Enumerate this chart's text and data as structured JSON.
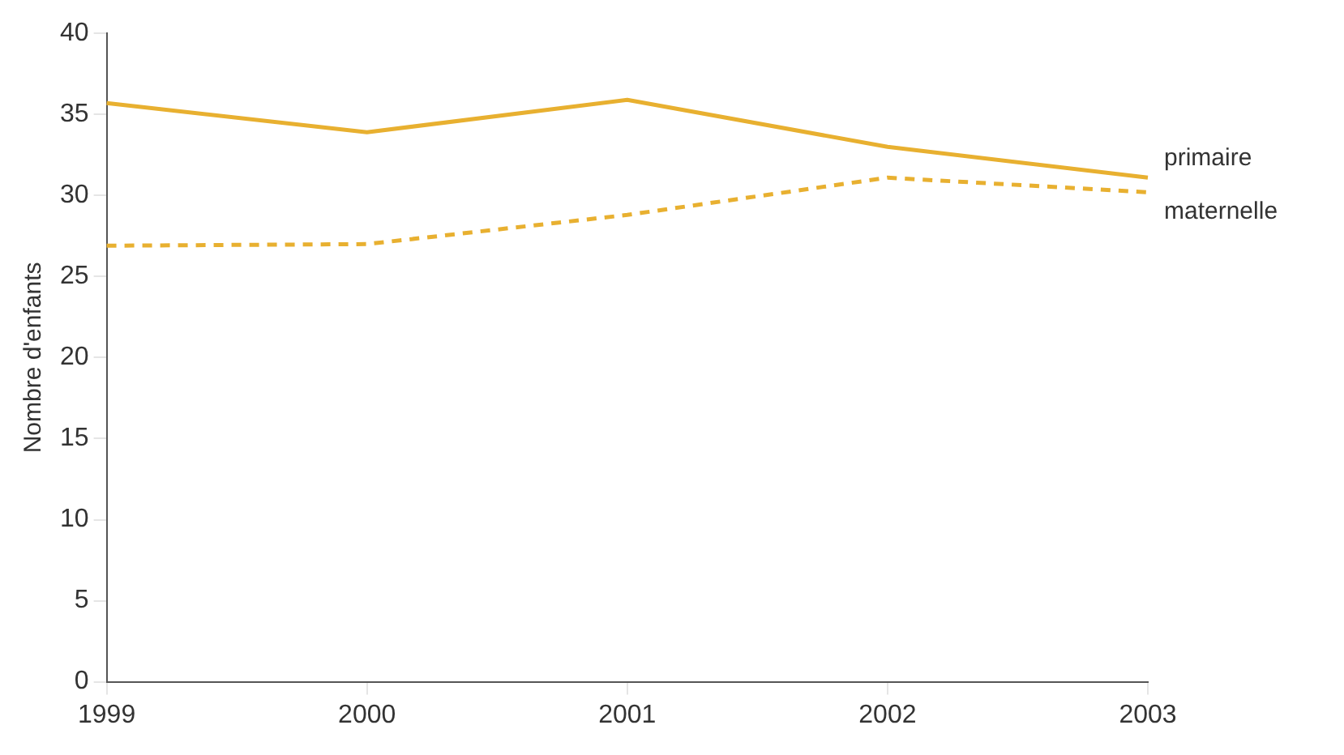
{
  "chart_data": {
    "type": "line",
    "ylabel": "Nombre d'enfants",
    "categories": [
      "1999",
      "2000",
      "2001",
      "2002",
      "2003"
    ],
    "series": [
      {
        "name": "primaire",
        "color": "#e8b030",
        "line_style": "solid",
        "values": [
          35.7,
          33.9,
          35.9,
          33.0,
          31.1
        ]
      },
      {
        "name": "maternelle",
        "color": "#e8b030",
        "line_style": "dashed",
        "values": [
          26.9,
          27.0,
          28.8,
          31.1,
          30.2
        ]
      }
    ],
    "ylim": [
      0,
      40
    ],
    "yticks": [
      0,
      5,
      10,
      15,
      20,
      25,
      30,
      35,
      40
    ],
    "grid": false,
    "legend": false,
    "marker": "none"
  }
}
